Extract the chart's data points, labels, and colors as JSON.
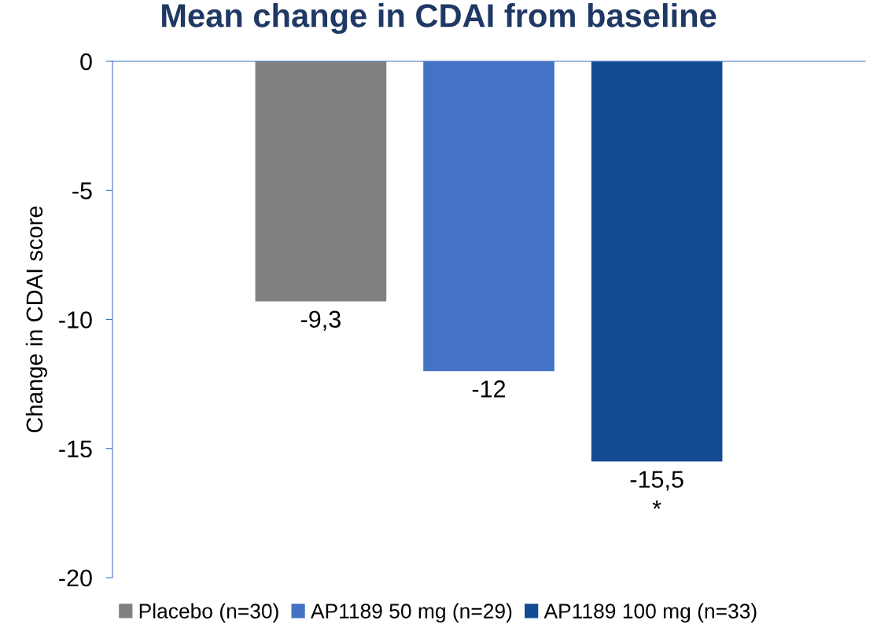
{
  "chart_data": {
    "type": "bar",
    "title": "Mean change in CDAI from baseline",
    "ylabel": "Change in CDAI score",
    "categories": [
      null
    ],
    "series": [
      {
        "name": "Placebo (n=30)",
        "color": "#808080",
        "values": [
          -9.3
        ],
        "value_labels": [
          "-9,3"
        ]
      },
      {
        "name": "AP1189 50 mg (n=29)",
        "color": "#4472c4",
        "values": [
          -12
        ],
        "value_labels": [
          "-12"
        ]
      },
      {
        "name": "AP1189 100 mg (n=33)",
        "color": "#134a92",
        "values": [
          -15.5
        ],
        "value_labels": [
          "-15,5\n*"
        ]
      }
    ],
    "ylim": [
      -20,
      0
    ],
    "yticks": [
      0,
      -5,
      -10,
      -15,
      -20
    ],
    "grid": false,
    "legend": "bottom"
  }
}
